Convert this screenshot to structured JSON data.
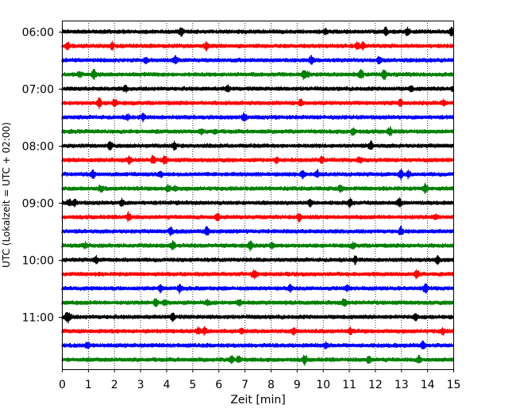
{
  "chart_data": {
    "type": "line",
    "title": "",
    "xlabel": "Zeit  [min]",
    "ylabel": "UTC (Lokalzeit = UTC + 02:00)",
    "xlim": [
      0,
      15
    ],
    "x_ticks": [
      0,
      1,
      2,
      3,
      4,
      5,
      6,
      7,
      8,
      9,
      10,
      11,
      12,
      13,
      14,
      15
    ],
    "y_tick_labels": [
      "06:00",
      "07:00",
      "08:00",
      "09:00",
      "10:00",
      "11:00"
    ],
    "grid": "vertical dotted at each minute",
    "trace_start_time": "06:00",
    "trace_interval_min": 15,
    "trace_color_cycle": [
      "#000000",
      "#ff0000",
      "#0000ff",
      "#008000"
    ],
    "series": [
      {
        "start": "06:00",
        "color": "#000000"
      },
      {
        "start": "06:15",
        "color": "#ff0000"
      },
      {
        "start": "06:30",
        "color": "#0000ff"
      },
      {
        "start": "06:45",
        "color": "#008000"
      },
      {
        "start": "07:00",
        "color": "#000000"
      },
      {
        "start": "07:15",
        "color": "#ff0000"
      },
      {
        "start": "07:30",
        "color": "#0000ff"
      },
      {
        "start": "07:45",
        "color": "#008000"
      },
      {
        "start": "08:00",
        "color": "#000000"
      },
      {
        "start": "08:15",
        "color": "#ff0000"
      },
      {
        "start": "08:30",
        "color": "#0000ff"
      },
      {
        "start": "08:45",
        "color": "#008000"
      },
      {
        "start": "09:00",
        "color": "#000000"
      },
      {
        "start": "09:15",
        "color": "#ff0000"
      },
      {
        "start": "09:30",
        "color": "#0000ff"
      },
      {
        "start": "09:45",
        "color": "#008000"
      },
      {
        "start": "10:00",
        "color": "#000000"
      },
      {
        "start": "10:15",
        "color": "#ff0000"
      },
      {
        "start": "10:30",
        "color": "#0000ff"
      },
      {
        "start": "10:45",
        "color": "#008000"
      },
      {
        "start": "11:00",
        "color": "#000000"
      },
      {
        "start": "11:15",
        "color": "#ff0000"
      },
      {
        "start": "11:30",
        "color": "#0000ff"
      },
      {
        "start": "11:45",
        "color": "#008000"
      }
    ]
  }
}
